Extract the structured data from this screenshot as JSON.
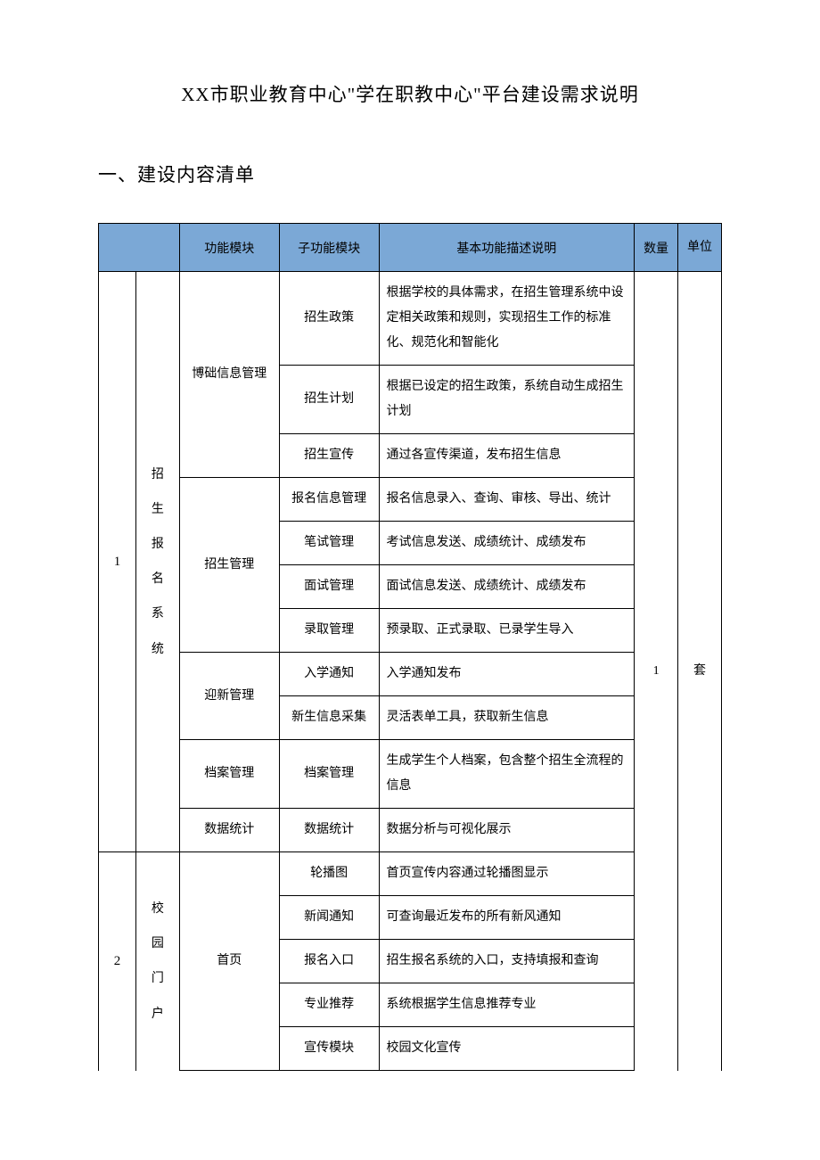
{
  "colors": {
    "header_bg": "#7ba8d6",
    "border": "#000000",
    "text": "#000000",
    "page_bg": "#ffffff"
  },
  "title": "XX市职业教育中心\"学在职教中心\"平台建设需求说明",
  "section_heading": "一、建设内容清单",
  "headers": {
    "col3": "功能模块",
    "col4": "子功能模块",
    "col5": "基本功能描述说明",
    "col6": "数量",
    "col7": "单位"
  },
  "systems": [
    {
      "index": "1",
      "name_chars": [
        "招",
        "生",
        "报",
        "名",
        "系",
        "统"
      ],
      "quantity": "1",
      "unit": "套",
      "modules": [
        {
          "name": "博础信息管理",
          "subs": [
            {
              "name": "招生政策",
              "desc": "根据学校的具体需求，在招生管理系统中设定相关政策和规则，实现招生工作的标准化、规范化和智能化"
            },
            {
              "name": "招生计划",
              "desc": "根据已设定的招生政策，系统自动生成招生计划"
            },
            {
              "name": "招生宣传",
              "desc": "通过各宣传渠道，发布招生信息"
            }
          ]
        },
        {
          "name": "招生管理",
          "subs": [
            {
              "name": "报名信息管理",
              "desc": "报名信息录入、查询、审核、导出、统计"
            },
            {
              "name": "笔试管理",
              "desc": "考试信息发送、成绩统计、成绩发布"
            },
            {
              "name": "面试管理",
              "desc": "面试信息发送、成绩统计、成绩发布"
            },
            {
              "name": "录取管理",
              "desc": "预录取、正式录取、已录学生导入"
            }
          ]
        },
        {
          "name": "迎新管理",
          "subs": [
            {
              "name": "入学通知",
              "desc": "入学通知发布"
            },
            {
              "name": "新生信息采集",
              "desc": "灵活表单工具，获取新生信息"
            }
          ]
        },
        {
          "name": "档案管理",
          "subs": [
            {
              "name": "档案管理",
              "desc": "生成学生个人档案，包含整个招生全流程的信息"
            }
          ]
        },
        {
          "name": "数据统计",
          "subs": [
            {
              "name": "数据统计",
              "desc": "数据分析与可视化展示"
            }
          ]
        }
      ]
    },
    {
      "index": "2",
      "name_chars": [
        "校",
        "园",
        "门",
        "户"
      ],
      "modules": [
        {
          "name": "首页",
          "subs": [
            {
              "name": "轮播图",
              "desc": "首页宣传内容通过轮播图显示"
            },
            {
              "name": "新闻通知",
              "desc": "可查询最近发布的所有新风通知"
            },
            {
              "name": "报名入口",
              "desc": "招生报名系统的入口，支持填报和查询"
            },
            {
              "name": "专业推荐",
              "desc": "系统根据学生信息推荐专业"
            },
            {
              "name": "宣传模块",
              "desc": "校园文化宣传"
            }
          ]
        }
      ]
    }
  ]
}
